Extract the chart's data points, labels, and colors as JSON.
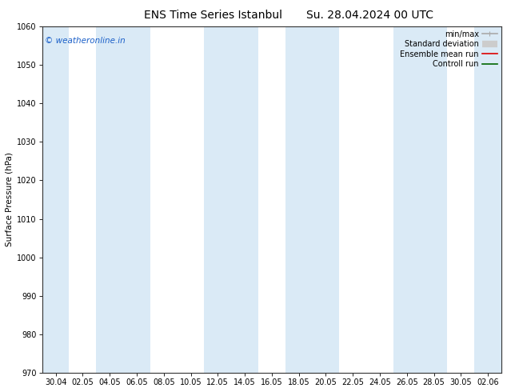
{
  "title_left": "ENS Time Series Istanbul",
  "title_right": "Su. 28.04.2024 00 UTC",
  "ylabel": "Surface Pressure (hPa)",
  "ylim": [
    970,
    1060
  ],
  "yticks": [
    970,
    980,
    990,
    1000,
    1010,
    1020,
    1030,
    1040,
    1050,
    1060
  ],
  "xtick_labels": [
    "30.04",
    "02.05",
    "04.05",
    "06.05",
    "08.05",
    "10.05",
    "12.05",
    "14.05",
    "16.05",
    "18.05",
    "20.05",
    "22.05",
    "24.05",
    "26.05",
    "28.05",
    "30.05",
    "02.06"
  ],
  "background_color": "#ffffff",
  "plot_bg_color": "#ffffff",
  "shaded_band_color": "#daeaf6",
  "watermark": "© weatheronline.in",
  "watermark_color": "#1a5fc8",
  "legend_items": [
    {
      "label": "min/max",
      "color": "#aaaaaa",
      "lw": 1.2
    },
    {
      "label": "Standard deviation",
      "color": "#cccccc",
      "lw": 6
    },
    {
      "label": "Ensemble mean run",
      "color": "#dd0000",
      "lw": 1.2
    },
    {
      "label": "Controll run",
      "color": "#006600",
      "lw": 1.2
    }
  ],
  "figsize": [
    6.34,
    4.9
  ],
  "dpi": 100,
  "title_fontsize": 10,
  "tick_fontsize": 7,
  "ylabel_fontsize": 7.5,
  "watermark_fontsize": 7.5,
  "legend_fontsize": 7
}
